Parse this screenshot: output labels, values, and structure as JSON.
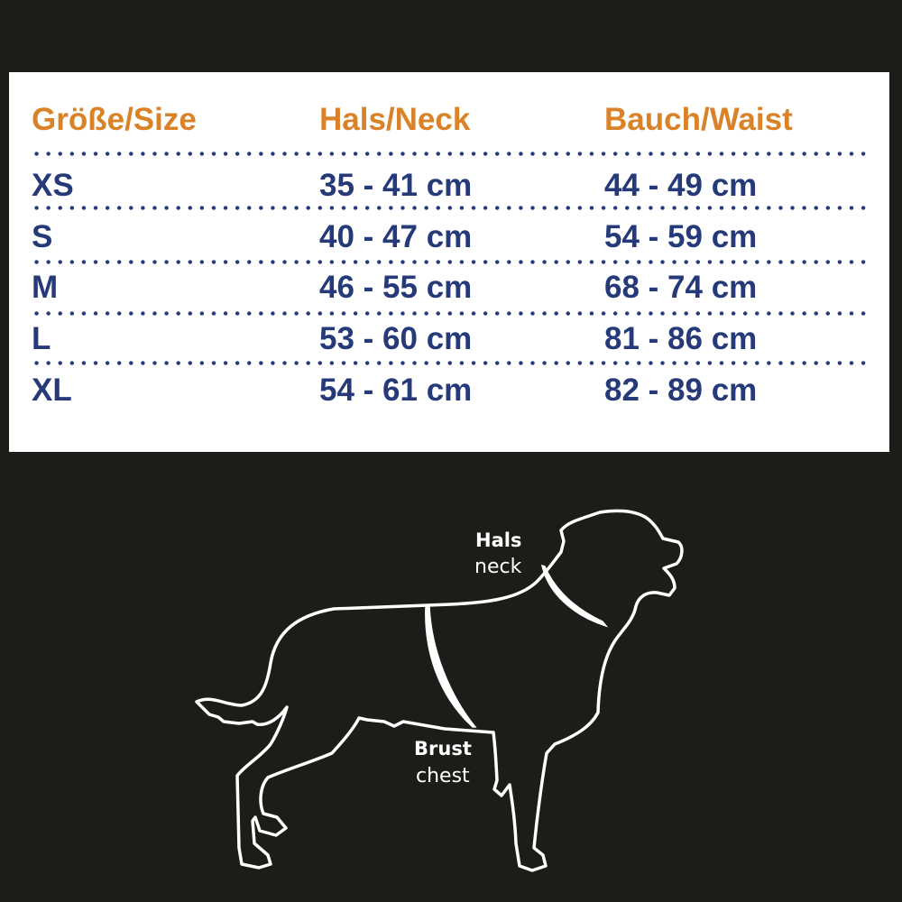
{
  "table": {
    "headers": [
      "Größe/Size",
      "Hals/Neck",
      "Bauch/Waist"
    ],
    "rows": [
      [
        "XS",
        "35 - 41 cm",
        "44 - 49 cm"
      ],
      [
        "S",
        "40 - 47 cm",
        "54 - 59 cm"
      ],
      [
        "M",
        "46 - 55 cm",
        "68 - 74 cm"
      ],
      [
        "L",
        "53 - 60 cm",
        "81 - 86 cm"
      ],
      [
        "XL",
        "54 - 61 cm",
        "82 - 89 cm"
      ]
    ]
  },
  "diagram": {
    "neck_de": "Hals",
    "neck_en": "neck",
    "chest_de": "Brust",
    "chest_en": "chest"
  },
  "colors": {
    "background": "#1a1d18",
    "header": "#d98228",
    "values": "#263a7a",
    "panel": "#ffffff"
  }
}
